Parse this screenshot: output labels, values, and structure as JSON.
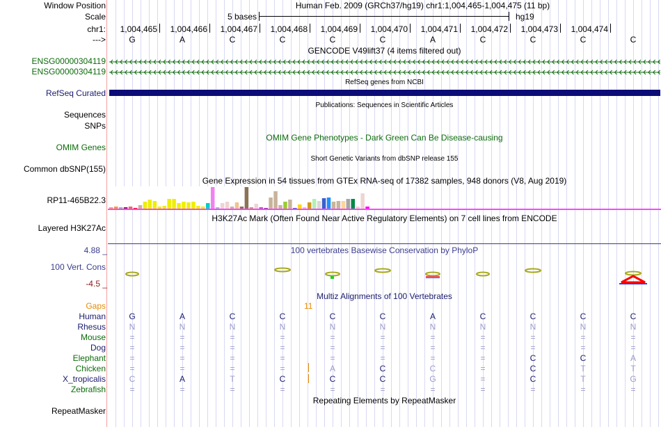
{
  "labels": {
    "window_position": "Window Position",
    "scale": "Scale",
    "chr": "chr1:",
    "strand": "--->",
    "ensg1": "ENSG00000304119",
    "ensg2": "ENSG00000304119",
    "refseq": "RefSeq Curated",
    "sequences": "Sequences",
    "snps": "SNPs",
    "omim": "OMIM Genes",
    "dbsnp": "Common dbSNP(155)",
    "gtex": "RP11-465B22.3",
    "h3k27ac": "Layered H3K27Ac",
    "cons": "100 Vert. Cons",
    "cons_max": "4.88 _",
    "cons_min": "-4.5 _",
    "gaps": "Gaps",
    "repeatmasker": "RepeatMasker"
  },
  "header": {
    "title": "Human Feb. 2009 (GRCh37/hg19)   chr1:1,004,465-1,004,475 (11 bp)",
    "scale_label": "5 bases",
    "assembly": "hg19"
  },
  "ruler": [
    "1,004,465",
    "1,004,466",
    "1,004,467",
    "1,004,468",
    "1,004,469",
    "1,004,470",
    "1,004,471",
    "1,004,472",
    "1,004,473",
    "1,004,474"
  ],
  "bases": [
    "G",
    "A",
    "C",
    "C",
    "C",
    "C",
    "A",
    "C",
    "C",
    "C",
    "C"
  ],
  "tracks": {
    "gencode": "GENCODE V49lift37 (4 items filtered out)",
    "refseq": "RefSeq genes from NCBI",
    "publications": "Publications: Sequences in Scientific Articles",
    "omim": "OMIM Gene Phenotypes - Dark Green Can Be Disease-causing",
    "dbsnp": "Short Genetic Variants from dbSNP release 155",
    "gtex": "Gene Expression in 54 tissues from GTEx RNA-seq of 17382 samples, 948 donors (V8, Aug 2019)",
    "h3k27ac": "H3K27Ac Mark (Often Found Near Active Regulatory Elements) on 7 cell lines from ENCODE",
    "phylop": "100 vertebrates Basewise Conservation by PhyloP",
    "multiz": "Multiz Alignments of 100 Vertebrates",
    "repeatmasker": "Repeating Elements by RepeatMasker",
    "gap_count": "11"
  },
  "gtex_bars": {
    "values": [
      2,
      3,
      2,
      2,
      3,
      1,
      5,
      10,
      13,
      11,
      3,
      4,
      14,
      14,
      8,
      10,
      9,
      10,
      4,
      3,
      8,
      31,
      2,
      8,
      10,
      3,
      9,
      3,
      31,
      2,
      7,
      2,
      1,
      16,
      25,
      5,
      10,
      13,
      1,
      6,
      2,
      9,
      14,
      11,
      15,
      16,
      10,
      11,
      11,
      14,
      14,
      3,
      22,
      3
    ],
    "colors": [
      "#f4a460",
      "#f39a3a",
      "#8fbc8f",
      "#8b1a6b",
      "#ee6a50",
      "#ff0000",
      "#c8b49a",
      "#eeee00",
      "#eeee00",
      "#eeee00",
      "#eeee00",
      "#eeee00",
      "#eeee00",
      "#eeee00",
      "#eeee00",
      "#eeee00",
      "#eeee00",
      "#eeee00",
      "#eeee00",
      "#eeee00",
      "#00cdcd",
      "#ee82ee",
      "#9ac0cd",
      "#eed5d2",
      "#eed5d2",
      "#c8b49a",
      "#eec591",
      "#8b7355",
      "#8b7355",
      "#cd9b6a",
      "#eed5d2",
      "#b452cd",
      "#7a378b",
      "#c8b49a",
      "#c8b49a",
      "#c8b49a",
      "#9acd32",
      "#c8b49a",
      "#3a5fcd",
      "#ffd700",
      "#ffb6c1",
      "#cd9b1d",
      "#b4eeb4",
      "#d9d9d9",
      "#3a5fcd",
      "#1e90ff",
      "#c8b49a",
      "#c8b49a",
      "#ffd39b",
      "#a6a6a6",
      "#008b45",
      "#eed5d2",
      "#eed5d2",
      "#ff00ff"
    ]
  },
  "alignment": {
    "species": [
      {
        "name": "Human",
        "color": "#1a1a6e",
        "bases": "GACCCCACCCC",
        "dark": "11111111111"
      },
      {
        "name": "Rhesus",
        "color": "#1a1a6e",
        "bases": "NNNNNNNNNNN",
        "dark": "00000000000"
      },
      {
        "name": "Mouse",
        "color": "#0c6b0c",
        "bases": "===========",
        "dark": "00000000000"
      },
      {
        "name": "Dog",
        "color": "#1a1a6e",
        "bases": "===========",
        "dark": "00000000000"
      },
      {
        "name": "Elephant",
        "color": "#0c6b0c",
        "bases": "========CCA",
        "dark": "00000000110"
      },
      {
        "name": "Chicken",
        "color": "#0c6b0c",
        "bases": "====ACC=CTT",
        "dark": "00000100100"
      },
      {
        "name": "X_tropicalis",
        "color": "#1a1a6e",
        "bases": "CATCCCG=CTG",
        "dark": "01011100100"
      },
      {
        "name": "Zebrafish",
        "color": "#0c6b0c",
        "bases": "===========",
        "dark": "00000000000"
      }
    ]
  },
  "colors": {
    "gencode": "#0c6b0c",
    "refseq": "#0c0c78",
    "gtex_line": "#ff44ff",
    "gap": "#e88a00",
    "dark_base": "#1a1a6e",
    "light_base": "#9a9acc"
  }
}
